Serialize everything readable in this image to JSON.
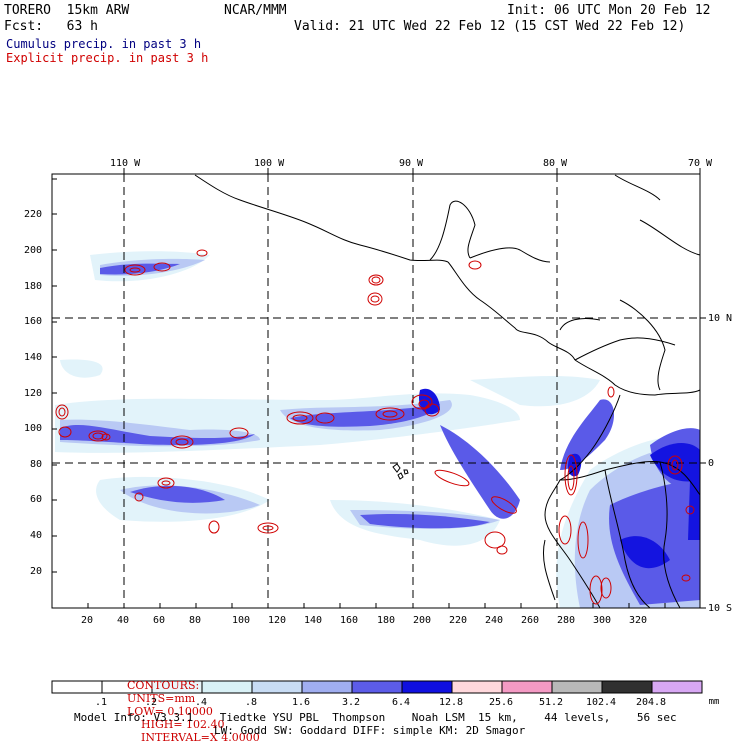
{
  "header": {
    "model": "TORERO  15km ARW",
    "org": "NCAR/MMM",
    "init": "Init: 06 UTC Mon 20 Feb 12",
    "fcst": "Fcst:   63 h",
    "valid": "Valid: 21 UTC Wed 22 Feb 12 (15 CST Wed 22 Feb 12)"
  },
  "legend": {
    "cumulus": "Cumulus precip. in past 3 h",
    "explicit": "Explicit precip. in past 3 h",
    "cumulus_color": "#000080",
    "explicit_color": "#d00000"
  },
  "map": {
    "lon_labels": [
      "110 W",
      "100 W",
      "90 W",
      "80 W",
      "70 W"
    ],
    "lat_labels": [
      "10 N",
      "0",
      "10 S"
    ],
    "x_ticks": [
      "20",
      "40",
      "60",
      "80",
      "100",
      "120",
      "140",
      "160",
      "180",
      "200",
      "220",
      "240",
      "260",
      "280",
      "300",
      "320"
    ],
    "y_ticks": [
      "20",
      "40",
      "60",
      "80",
      "100",
      "120",
      "140",
      "160",
      "180",
      "200",
      "220"
    ]
  },
  "contours_info": {
    "contours": "CONTOURS:",
    "units": "UNITS=mm",
    "low": "LOW= 0.10000",
    "high": "HIGH= 102.40",
    "interval": "INTERVAL=X 4.0000",
    "color": "#cc0000"
  },
  "colorbar": {
    "labels": [
      ".1",
      ".2",
      ".4",
      ".8",
      "1.6",
      "3.2",
      "6.4",
      "12.8",
      "25.6",
      "51.2",
      "102.4",
      "204.8"
    ],
    "unit": "mm",
    "colors": [
      "#ffffff",
      "#ffffff",
      "#eaf6fa",
      "#d9f1f6",
      "#c8dcf4",
      "#a0aef0",
      "#5c5ce8",
      "#1010e0",
      "#ffd8dc",
      "#f49ac4",
      "#b8b8b8",
      "#303030",
      "#d8a8f4"
    ]
  },
  "footer": {
    "line1": "Model Info: V3.3.1    Tiedtke YSU PBL  Thompson    Noah LSM  15 km,    44 levels,    56 sec",
    "line2": "LW: Godd SW: Goddard DIFF: simple KM: 2D Smagor"
  }
}
